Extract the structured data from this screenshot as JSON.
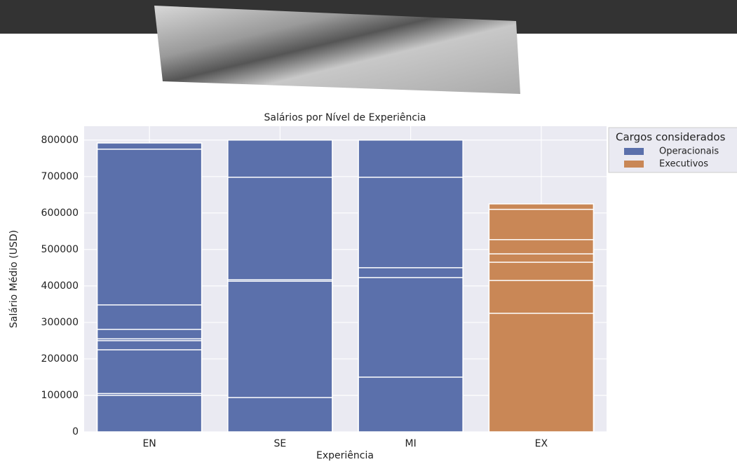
{
  "chart_data": {
    "type": "bar",
    "title": "Salários por Nível de Experiência",
    "x_label": "Experiência",
    "y_label": "Salário Médio (USD)",
    "legend_title": "Cargos considerados",
    "categories": [
      "EN",
      "SE",
      "MI",
      "EX"
    ],
    "series": [
      {
        "name": "Operacionais",
        "color": "#5b70ab",
        "values": [
          [
            792000,
            775000,
            348000,
            281000,
            255000,
            250000,
            225000,
            105000,
            100000
          ],
          [
            800000,
            698000,
            417000,
            413000,
            94000
          ],
          [
            800000,
            698000,
            450000,
            423000,
            150000
          ],
          null
        ]
      },
      {
        "name": "Executivos",
        "color": "#c98756",
        "values": [
          null,
          null,
          null,
          [
            625000,
            610000,
            527000,
            488000,
            465000,
            415000,
            325000
          ]
        ]
      }
    ],
    "ylim": [
      0,
      838000
    ],
    "yticks": [
      0,
      100000,
      200000,
      300000,
      400000,
      500000,
      600000,
      700000,
      800000
    ],
    "grid": true
  }
}
